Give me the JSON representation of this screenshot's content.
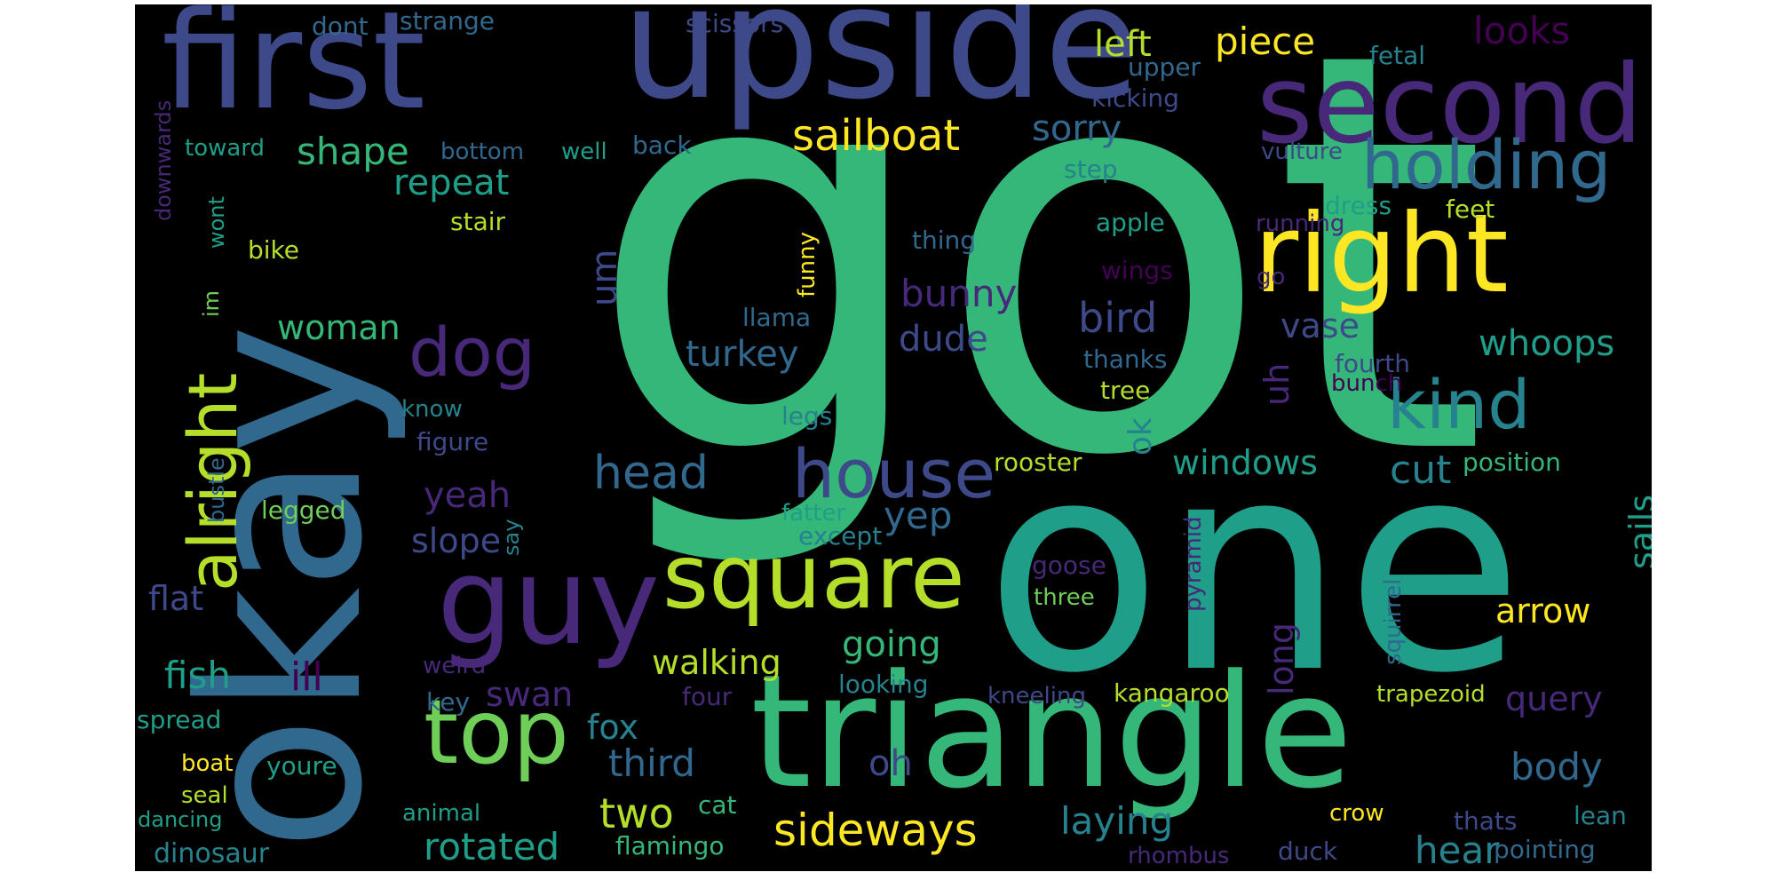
{
  "palette": {
    "background": "#000000",
    "a": "#440154",
    "b": "#482878",
    "c": "#3e4989",
    "d": "#31688e",
    "e": "#26828e",
    "f": "#1f9e89",
    "g": "#35b779",
    "h": "#6ece58",
    "i": "#b5de2b",
    "j": "#fde725"
  },
  "words": [
    {
      "text": "got",
      "color": "g"
    },
    {
      "text": "one",
      "color": "f"
    },
    {
      "text": "okay",
      "color": "d"
    },
    {
      "text": "triangle",
      "color": "g"
    },
    {
      "text": "upside",
      "color": "c"
    },
    {
      "text": "first",
      "color": "c"
    },
    {
      "text": "second",
      "color": "b"
    },
    {
      "text": "right",
      "color": "j"
    },
    {
      "text": "guy",
      "color": "b"
    },
    {
      "text": "square",
      "color": "i"
    },
    {
      "text": "top",
      "color": "h"
    },
    {
      "text": "holding",
      "color": "d"
    },
    {
      "text": "kind",
      "color": "e"
    },
    {
      "text": "house",
      "color": "c"
    },
    {
      "text": "alright",
      "color": "i"
    },
    {
      "text": "dog",
      "color": "b"
    },
    {
      "text": "sailboat",
      "color": "j"
    },
    {
      "text": "shape",
      "color": "g"
    },
    {
      "text": "piece",
      "color": "j"
    },
    {
      "text": "left",
      "color": "i"
    },
    {
      "text": "looks",
      "color": "a"
    },
    {
      "text": "sorry",
      "color": "d"
    },
    {
      "text": "repeat",
      "color": "f"
    },
    {
      "text": "head",
      "color": "d"
    },
    {
      "text": "windows",
      "color": "f"
    },
    {
      "text": "cut",
      "color": "e"
    },
    {
      "text": "whoops",
      "color": "f"
    },
    {
      "text": "vase",
      "color": "c"
    },
    {
      "text": "bird",
      "color": "c"
    },
    {
      "text": "bunny",
      "color": "b"
    },
    {
      "text": "dude",
      "color": "c"
    },
    {
      "text": "turkey",
      "color": "d"
    },
    {
      "text": "woman",
      "color": "g"
    },
    {
      "text": "yeah",
      "color": "b"
    },
    {
      "text": "slope",
      "color": "c"
    },
    {
      "text": "yep",
      "color": "d"
    },
    {
      "text": "arrow",
      "color": "j"
    },
    {
      "text": "going",
      "color": "g"
    },
    {
      "text": "walking",
      "color": "i"
    },
    {
      "text": "fish",
      "color": "f"
    },
    {
      "text": "flat",
      "color": "c"
    },
    {
      "text": "ill",
      "color": "a"
    },
    {
      "text": "swan",
      "color": "b"
    },
    {
      "text": "fox",
      "color": "e"
    },
    {
      "text": "third",
      "color": "d"
    },
    {
      "text": "two",
      "color": "i"
    },
    {
      "text": "sideways",
      "color": "j"
    },
    {
      "text": "rotated",
      "color": "f"
    },
    {
      "text": "laying",
      "color": "e"
    },
    {
      "text": "body",
      "color": "d"
    },
    {
      "text": "hear",
      "color": "e"
    },
    {
      "text": "query",
      "color": "b"
    },
    {
      "text": "oh",
      "color": "c"
    },
    {
      "text": "sails",
      "color": "f"
    },
    {
      "text": "long",
      "color": "b"
    },
    {
      "text": "um",
      "color": "c"
    },
    {
      "text": "uh",
      "color": "b"
    },
    {
      "text": "ok",
      "color": "e"
    },
    {
      "text": "scissors",
      "color": "c"
    },
    {
      "text": "dont",
      "color": "d"
    },
    {
      "text": "strange",
      "color": "d"
    },
    {
      "text": "upper",
      "color": "d"
    },
    {
      "text": "fetal",
      "color": "e"
    },
    {
      "text": "kicking",
      "color": "c"
    },
    {
      "text": "bottom",
      "color": "d"
    },
    {
      "text": "toward",
      "color": "f"
    },
    {
      "text": "well",
      "color": "f"
    },
    {
      "text": "back",
      "color": "d"
    },
    {
      "text": "vulture",
      "color": "c"
    },
    {
      "text": "step",
      "color": "e"
    },
    {
      "text": "stair",
      "color": "i"
    },
    {
      "text": "dress",
      "color": "f"
    },
    {
      "text": "feet",
      "color": "i"
    },
    {
      "text": "running",
      "color": "b"
    },
    {
      "text": "apple",
      "color": "f"
    },
    {
      "text": "bike",
      "color": "i"
    },
    {
      "text": "thing",
      "color": "d"
    },
    {
      "text": "wings",
      "color": "a"
    },
    {
      "text": "go",
      "color": "b"
    },
    {
      "text": "llama",
      "color": "d"
    },
    {
      "text": "thanks",
      "color": "d"
    },
    {
      "text": "fourth",
      "color": "c"
    },
    {
      "text": "bunch",
      "color": "a"
    },
    {
      "text": "tree",
      "color": "i"
    },
    {
      "text": "know",
      "color": "e"
    },
    {
      "text": "legs",
      "color": "e"
    },
    {
      "text": "figure",
      "color": "c"
    },
    {
      "text": "rooster",
      "color": "i"
    },
    {
      "text": "position",
      "color": "g"
    },
    {
      "text": "legged",
      "color": "h"
    },
    {
      "text": "fatter",
      "color": "f"
    },
    {
      "text": "except",
      "color": "e"
    },
    {
      "text": "goose",
      "color": "b"
    },
    {
      "text": "three",
      "color": "h"
    },
    {
      "text": "weird",
      "color": "b"
    },
    {
      "text": "key",
      "color": "d"
    },
    {
      "text": "four",
      "color": "b"
    },
    {
      "text": "looking",
      "color": "e"
    },
    {
      "text": "kneeling",
      "color": "c"
    },
    {
      "text": "kangaroo",
      "color": "i"
    },
    {
      "text": "trapezoid",
      "color": "i"
    },
    {
      "text": "spread",
      "color": "f"
    },
    {
      "text": "boat",
      "color": "j"
    },
    {
      "text": "youre",
      "color": "f"
    },
    {
      "text": "seal",
      "color": "i"
    },
    {
      "text": "cat",
      "color": "g"
    },
    {
      "text": "animal",
      "color": "f"
    },
    {
      "text": "dancing",
      "color": "f"
    },
    {
      "text": "crow",
      "color": "j"
    },
    {
      "text": "thats",
      "color": "c"
    },
    {
      "text": "lean",
      "color": "e"
    },
    {
      "text": "dinosaur",
      "color": "e"
    },
    {
      "text": "flamingo",
      "color": "g"
    },
    {
      "text": "rhombus",
      "color": "b"
    },
    {
      "text": "duck",
      "color": "c"
    },
    {
      "text": "pointing",
      "color": "d"
    },
    {
      "text": "im",
      "color": "h"
    },
    {
      "text": "say",
      "color": "e"
    },
    {
      "text": "wont",
      "color": "f"
    },
    {
      "text": "funny",
      "color": "j"
    },
    {
      "text": "downwards",
      "color": "b"
    },
    {
      "text": "bustle",
      "color": "d"
    },
    {
      "text": "pyramid",
      "color": "b"
    },
    {
      "text": "squirrel",
      "color": "d"
    }
  ]
}
